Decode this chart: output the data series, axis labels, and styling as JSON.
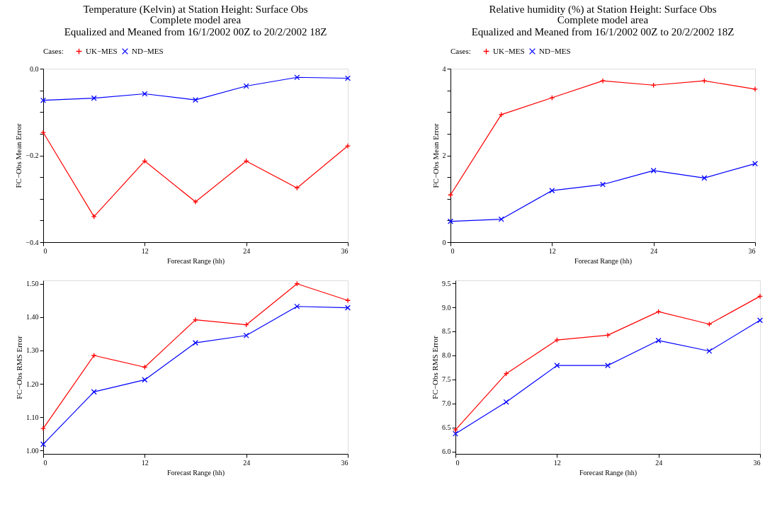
{
  "chart_data": [
    {
      "type": "line",
      "title": "Temperature (Kelvin) at Station Height:  Surface Obs",
      "subtitle": "Complete model area\nEqualized and Meaned from 16/1/2002 00Z to 20/2/2002 18Z",
      "xlabel": "Forecast Range (hh)",
      "ylabel": "FC−Obs Mean Error",
      "legend_title": "Cases:",
      "legend": "top left",
      "grid": false,
      "x": [
        0,
        6,
        12,
        18,
        24,
        30,
        36
      ],
      "xlim": [
        0,
        36
      ],
      "xticks": [
        0,
        12,
        24,
        36
      ],
      "ylim": [
        -0.4,
        0
      ],
      "yticks": [
        {
          "value": -0.4,
          "label": "−0.4"
        },
        {
          "value": -0.35,
          "label": null
        },
        {
          "value": -0.3,
          "label": null
        },
        {
          "value": -0.25,
          "label": null
        },
        {
          "value": -0.2,
          "label": "−0.2"
        },
        {
          "value": -0.15,
          "label": null
        },
        {
          "value": -0.1,
          "label": null
        },
        {
          "value": -0.05,
          "label": null
        },
        {
          "value": 0,
          "label": "0.0"
        }
      ],
      "series": [
        {
          "name": "UK−MES",
          "color": "#ff0000",
          "marker": "plus",
          "values": [
            -0.147,
            -0.341,
            -0.213,
            -0.307,
            -0.213,
            -0.275,
            -0.178
          ]
        },
        {
          "name": "ND−MES",
          "color": "#0000ff",
          "marker": "cross",
          "values": [
            -0.073,
            -0.068,
            -0.058,
            -0.072,
            -0.04,
            -0.02,
            -0.022
          ]
        }
      ]
    },
    {
      "type": "line",
      "title": "Relative humidity (%) at Station Height:  Surface Obs",
      "subtitle": "Complete model area\nEqualized and Meaned from 16/1/2002 00Z to 20/2/2002 18Z",
      "xlabel": "Forecast Range (hh)",
      "ylabel": "FC−Obs Mean Error",
      "legend_title": "Cases:",
      "legend": "top left",
      "grid": false,
      "x": [
        0,
        6,
        12,
        18,
        24,
        30,
        36
      ],
      "xlim": [
        0,
        36
      ],
      "xticks": [
        0,
        12,
        24,
        36
      ],
      "ylim": [
        0,
        4
      ],
      "yticks": [
        0,
        {
          "value": 0.5,
          "label": null
        },
        {
          "value": 1,
          "label": null
        },
        {
          "value": 1.5,
          "label": null
        },
        2,
        {
          "value": 2.5,
          "label": null
        },
        {
          "value": 3,
          "label": null
        },
        {
          "value": 3.5,
          "label": null
        },
        4
      ],
      "series": [
        {
          "name": "UK−MES",
          "color": "#ff0000",
          "marker": "plus",
          "values": [
            1.09,
            2.94,
            3.33,
            3.72,
            3.62,
            3.72,
            3.53
          ]
        },
        {
          "name": "ND−MES",
          "color": "#0000ff",
          "marker": "cross",
          "values": [
            0.48,
            0.53,
            1.19,
            1.33,
            1.65,
            1.48,
            1.81
          ]
        }
      ]
    },
    {
      "type": "line",
      "xlabel": "Forecast Range (hh)",
      "ylabel": "FC−Obs RMS Error",
      "grid": false,
      "x": [
        0,
        6,
        12,
        18,
        24,
        30,
        36
      ],
      "xlim": [
        0,
        36
      ],
      "xticks": [
        0,
        12,
        24,
        36
      ],
      "ylim": [
        0.99,
        1.51
      ],
      "yticks": [
        {
          "value": 1.0,
          "label": "1.00"
        },
        {
          "value": 1.1,
          "label": "1.10"
        },
        {
          "value": 1.2,
          "label": "1.20"
        },
        {
          "value": 1.3,
          "label": "1.30"
        },
        {
          "value": 1.4,
          "label": "1.40"
        },
        {
          "value": 1.5,
          "label": "1.50"
        }
      ],
      "series": [
        {
          "color": "#ff0000",
          "marker": "plus",
          "values": [
            1.066,
            1.285,
            1.25,
            1.392,
            1.377,
            1.5,
            1.45
          ]
        },
        {
          "color": "#0000ff",
          "marker": "cross",
          "values": [
            1.019,
            1.176,
            1.212,
            1.323,
            1.345,
            1.432,
            1.428
          ]
        }
      ]
    },
    {
      "type": "line",
      "xlabel": "Forecast Range (hh)",
      "ylabel": "FC−Obs RMS Error",
      "grid": false,
      "x": [
        0,
        6,
        12,
        18,
        24,
        30,
        36
      ],
      "xlim": [
        0,
        36
      ],
      "xticks": [
        0,
        12,
        24,
        36
      ],
      "ylim": [
        5.95,
        9.56
      ],
      "yticks": [
        {
          "value": 6,
          "label": "6.0"
        },
        {
          "value": 6.5,
          "label": "6.5"
        },
        {
          "value": 7,
          "label": "7.0"
        },
        {
          "value": 7.5,
          "label": "7.5"
        },
        {
          "value": 8,
          "label": "8.0"
        },
        {
          "value": 8.5,
          "label": "8.5"
        },
        {
          "value": 9,
          "label": "9.0"
        },
        {
          "value": 9.5,
          "label": "9.5"
        }
      ],
      "series": [
        {
          "color": "#ff0000",
          "marker": "plus",
          "values": [
            6.45,
            7.62,
            8.32,
            8.42,
            8.91,
            8.65,
            9.23
          ]
        },
        {
          "color": "#0000ff",
          "marker": "cross",
          "values": [
            6.37,
            7.03,
            7.79,
            7.79,
            8.31,
            8.09,
            8.73
          ]
        }
      ]
    }
  ]
}
